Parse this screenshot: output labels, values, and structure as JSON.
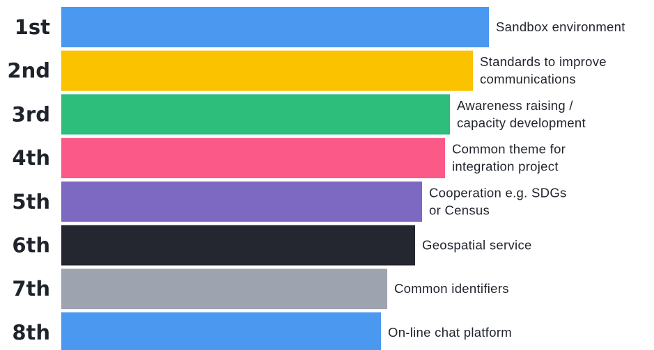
{
  "chart_data": {
    "type": "bar",
    "orientation": "horizontal",
    "grid": false,
    "categories": [
      "1st",
      "2nd",
      "3rd",
      "4th",
      "5th",
      "6th",
      "7th",
      "8th"
    ],
    "items": [
      {
        "rank": "1st",
        "lines": [
          "Sandbox environment"
        ],
        "value": 614,
        "color": "#4a98f0"
      },
      {
        "rank": "2nd",
        "lines": [
          "Standards to improve",
          "communications"
        ],
        "value": 591,
        "color": "#fbc200"
      },
      {
        "rank": "3rd",
        "lines": [
          "Awareness raising /",
          "capacity development"
        ],
        "value": 558,
        "color": "#2dbe7c"
      },
      {
        "rank": "4th",
        "lines": [
          "Common theme for",
          "integration project"
        ],
        "value": 551,
        "color": "#fb5a89"
      },
      {
        "rank": "5th",
        "lines": [
          "Cooperation e.g. SDGs",
          "or Census"
        ],
        "value": 518,
        "color": "#7d68c2"
      },
      {
        "rank": "6th",
        "lines": [
          "Geospatial service"
        ],
        "value": 508,
        "color": "#242730"
      },
      {
        "rank": "7th",
        "lines": [
          "Common identifiers"
        ],
        "value": 468,
        "color": "#9da3af"
      },
      {
        "rank": "8th",
        "lines": [
          "On-line chat platform"
        ],
        "value": 459,
        "color": "#4a98f0"
      }
    ]
  }
}
